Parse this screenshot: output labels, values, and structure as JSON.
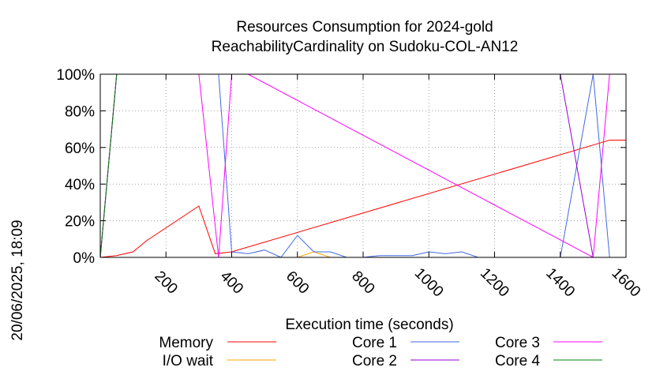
{
  "chart_data": {
    "type": "line",
    "title": "Resources Consumption for 2024-gold",
    "subtitle": "ReachabilityCardinality on Sudoku-COL-AN12",
    "xlabel": "Execution time (seconds)",
    "ylabel": "",
    "side_text": "20/06/2025, 18:09",
    "xlim": [
      0,
      1600
    ],
    "ylim": [
      0,
      100
    ],
    "x_ticks": [
      200,
      400,
      600,
      800,
      1000,
      1200,
      1400,
      1600
    ],
    "x_tick_labels": [
      "200",
      "400",
      "600",
      "800",
      "1000",
      "1200",
      "1400",
      "1600"
    ],
    "y_ticks": [
      0,
      20,
      40,
      60,
      80,
      100
    ],
    "y_tick_labels": [
      "0%",
      "20%",
      "40%",
      "60%",
      "80%",
      "100%"
    ],
    "grid": true,
    "legend_position": "bottom",
    "series": [
      {
        "name": "Memory",
        "color": "#ff0000",
        "x": [
          0,
          50,
          100,
          140,
          300,
          350,
          400,
          1550,
          1600
        ],
        "y": [
          0,
          1,
          3,
          9,
          28,
          2,
          3,
          64,
          64
        ]
      },
      {
        "name": "I/O wait",
        "color": "#ffa500",
        "x": [
          0,
          600,
          650,
          700,
          1600
        ],
        "y": [
          0,
          0,
          3,
          0,
          0
        ]
      },
      {
        "name": "Core 1",
        "color": "#4169e1",
        "x": [
          0,
          50,
          100,
          150,
          200,
          250,
          300,
          360,
          400,
          450,
          500,
          550,
          600,
          650,
          700,
          750,
          800,
          850,
          900,
          950,
          1000,
          1050,
          1100,
          1150,
          1200,
          1250,
          1300,
          1350,
          1400,
          1450,
          1500,
          1550,
          1600
        ],
        "y": [
          0,
          100,
          100,
          100,
          100,
          100,
          100,
          100,
          3,
          2,
          4,
          0,
          12,
          3,
          3,
          0,
          0,
          1,
          1,
          1,
          3,
          2,
          3,
          0,
          0,
          0,
          0,
          0,
          0,
          50,
          100,
          0,
          0
        ]
      },
      {
        "name": "Core 2",
        "color": "#9400d3",
        "x": [
          0,
          50,
          1400,
          1500,
          1550
        ],
        "y": [
          0,
          100,
          100,
          0,
          0
        ]
      },
      {
        "name": "Core 3",
        "color": "#ff00ff",
        "x": [
          0,
          50,
          300,
          360,
          400,
          450,
          1500,
          1550
        ],
        "y": [
          0,
          100,
          100,
          0,
          100,
          100,
          0,
          100
        ]
      },
      {
        "name": "Core 4",
        "color": "#008000",
        "x": [
          0,
          50,
          1600
        ],
        "y": [
          0,
          100,
          100
        ]
      }
    ]
  }
}
